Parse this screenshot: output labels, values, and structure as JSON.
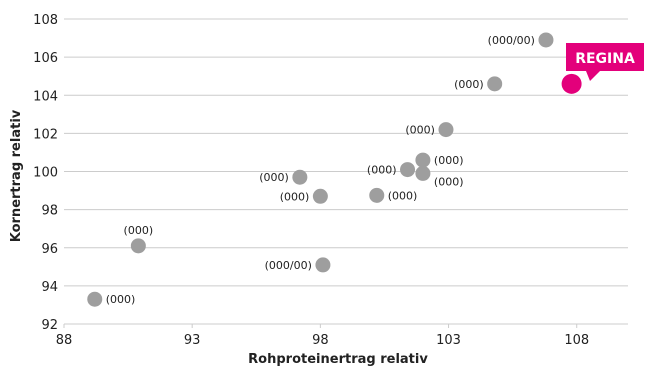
{
  "chart_data": {
    "type": "scatter",
    "xlabel": "Rohproteinertrag relativ",
    "ylabel": "Kornertrag relativ",
    "xlim": [
      88,
      110
    ],
    "ylim": [
      92,
      108
    ],
    "x_ticks": [
      88,
      93,
      98,
      103,
      108
    ],
    "y_ticks": [
      92,
      94,
      96,
      98,
      100,
      102,
      104,
      106,
      108
    ],
    "grid": "horizontal",
    "colors": {
      "points": "#9e9e9e",
      "highlight": "#e3007b",
      "grid": "#cccccc",
      "text": "#222222"
    },
    "points": [
      {
        "x": 106.8,
        "y": 106.9,
        "label": "(000/00)",
        "label_side": "left"
      },
      {
        "x": 104.8,
        "y": 104.6,
        "label": "(000)",
        "label_side": "left"
      },
      {
        "x": 102.9,
        "y": 102.2,
        "label": "(000)",
        "label_side": "left"
      },
      {
        "x": 102.0,
        "y": 100.6,
        "label": "(000)",
        "label_side": "right"
      },
      {
        "x": 101.4,
        "y": 100.1,
        "label": "(000)",
        "label_side": "left"
      },
      {
        "x": 102.0,
        "y": 99.9,
        "label": "(000)",
        "label_side": "right-below"
      },
      {
        "x": 97.2,
        "y": 99.7,
        "label": "(000)",
        "label_side": "left"
      },
      {
        "x": 98.0,
        "y": 98.7,
        "label": "(000)",
        "label_side": "left"
      },
      {
        "x": 100.2,
        "y": 98.75,
        "label": "(000)",
        "label_side": "right"
      },
      {
        "x": 90.9,
        "y": 96.1,
        "label": "(000)",
        "label_side": "above"
      },
      {
        "x": 98.1,
        "y": 95.1,
        "label": "(000/00)",
        "label_side": "left"
      },
      {
        "x": 89.2,
        "y": 93.3,
        "label": "(000)",
        "label_side": "right"
      }
    ],
    "highlight": {
      "x": 107.8,
      "y": 104.6,
      "label": "REGINA"
    }
  }
}
